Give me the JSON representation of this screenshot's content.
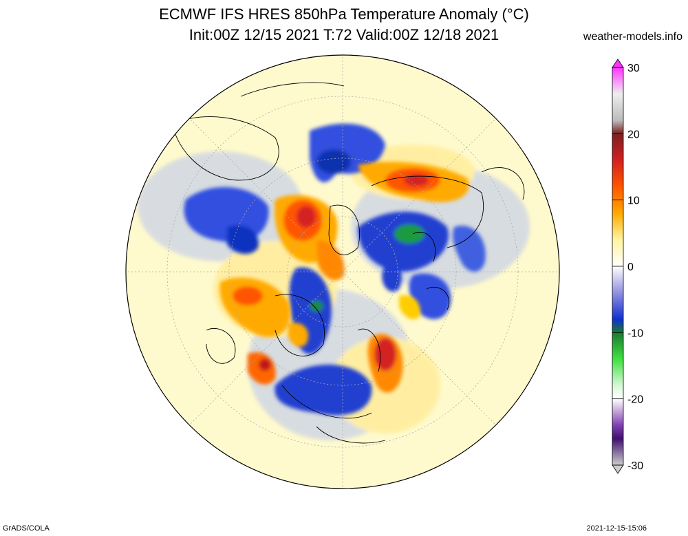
{
  "header": {
    "title_line1": "ECMWF IFS HRES 850hPa Temperature Anomaly (°C)",
    "title_line2": "Init:00Z 12/15 2021 T:72 Valid:00Z 12/18 2021",
    "source": "weather-models.info"
  },
  "colorbar": {
    "min": -30,
    "max": 30,
    "tick_labels": [
      "30",
      "20",
      "10",
      "0",
      "-10",
      "-20",
      "-30"
    ],
    "tick_values": [
      30,
      20,
      10,
      0,
      -10,
      -20,
      -30
    ],
    "stops": [
      {
        "value": 30,
        "color": "#ff33ff"
      },
      {
        "value": 26,
        "color": "#eeeeee"
      },
      {
        "value": 22,
        "color": "#bbbbbb"
      },
      {
        "value": 20,
        "color": "#7a2020"
      },
      {
        "value": 16,
        "color": "#d42020"
      },
      {
        "value": 12,
        "color": "#ff5500"
      },
      {
        "value": 8,
        "color": "#ffaa00"
      },
      {
        "value": 4,
        "color": "#fff4a0"
      },
      {
        "value": 0,
        "color": "#ffffff"
      },
      {
        "value": -4,
        "color": "#9090e0"
      },
      {
        "value": -8,
        "color": "#1030d0"
      },
      {
        "value": -10,
        "color": "#1a7a30"
      },
      {
        "value": -14,
        "color": "#40e040"
      },
      {
        "value": -18,
        "color": "#d8f8d8"
      },
      {
        "value": -20,
        "color": "#ffffff"
      },
      {
        "value": -24,
        "color": "#8040b0"
      },
      {
        "value": -26,
        "color": "#401070"
      },
      {
        "value": -30,
        "color": "#cccccc"
      }
    ]
  },
  "map": {
    "projection": "north-polar-stereographic",
    "background_color": "#fffacd",
    "blobs": [
      {
        "name": "warm-anomaly-europe",
        "color": "#ffcc00",
        "category": "warm"
      },
      {
        "name": "warm-anomaly-siberia",
        "color": "#ff6600",
        "category": "warm"
      },
      {
        "name": "cold-anomaly-north-america",
        "color": "#2040d0",
        "category": "cold"
      },
      {
        "name": "cold-anomaly-arctic",
        "color": "#3050e0",
        "category": "cold"
      },
      {
        "name": "warm-anomaly-north-atlantic",
        "color": "#ff4400",
        "category": "warm"
      },
      {
        "name": "cold-anomaly-alaska",
        "color": "#1030c0",
        "category": "cold"
      },
      {
        "name": "cold-anomaly-east-asia",
        "color": "#5060e0",
        "category": "cold"
      }
    ]
  },
  "footer": {
    "left": "GrADS/COLA",
    "right": "2021-12-15-15:06"
  }
}
